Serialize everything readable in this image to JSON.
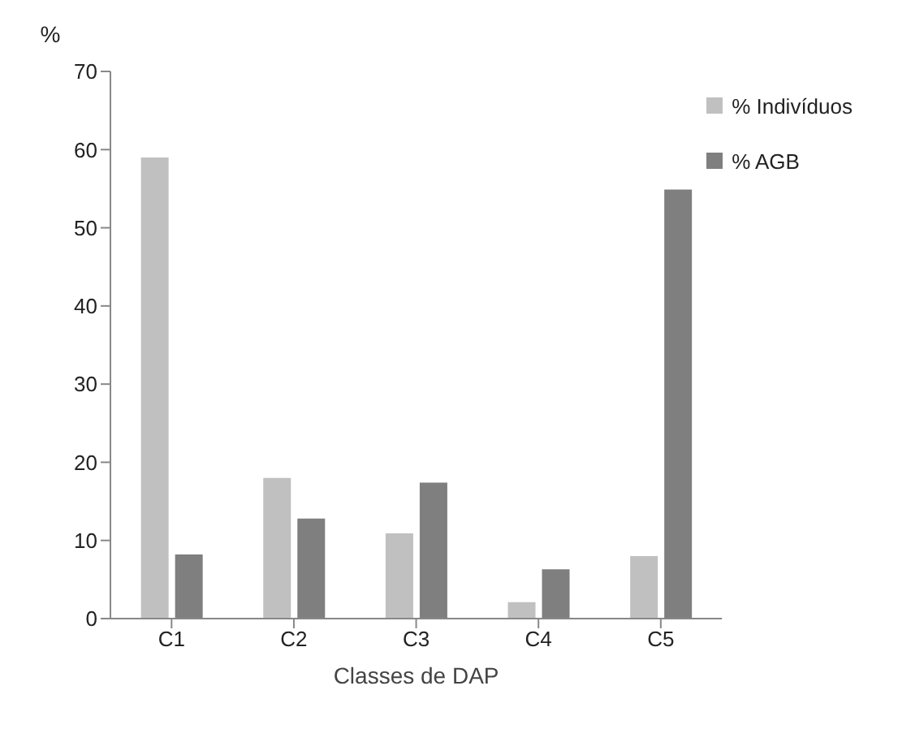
{
  "chart_data": {
    "type": "bar",
    "xlabel": "Classes de DAP",
    "ylabel": "%",
    "categories": [
      "C1",
      "C2",
      "C3",
      "C4",
      "C5"
    ],
    "series": [
      {
        "name": "% Indivíduos",
        "color": "#c0c0c0",
        "values": [
          59,
          18,
          10.9,
          2.1,
          8
        ]
      },
      {
        "name": "% AGB",
        "color": "#7f7f7f",
        "values": [
          8.2,
          12.8,
          17.4,
          6.3,
          54.9
        ]
      }
    ],
    "ylim": [
      0,
      70
    ],
    "yticks": [
      0,
      10,
      20,
      30,
      40,
      50,
      60,
      70
    ],
    "grid": false,
    "legend": "top right"
  }
}
